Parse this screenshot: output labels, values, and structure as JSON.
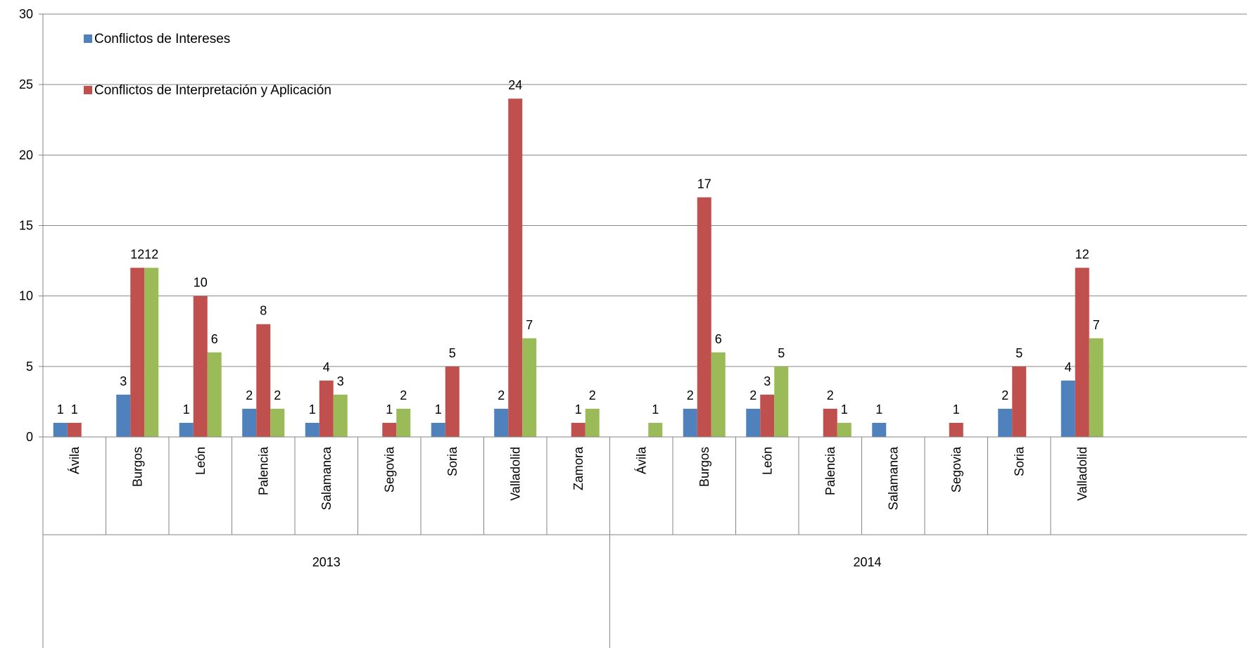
{
  "chart_data": {
    "type": "bar",
    "ylim": [
      0,
      30
    ],
    "yticks": [
      0,
      5,
      10,
      15,
      20,
      25,
      30
    ],
    "grid": true,
    "legend_position": "top-left",
    "groups": [
      {
        "label": "2013",
        "categories": [
          "Ávila",
          "Burgos",
          "León",
          "Palencia",
          "Salamanca",
          "Segovia",
          "Soria",
          "Valladolid",
          "Zamora"
        ]
      },
      {
        "label": "2014",
        "categories": [
          "Ávila",
          "Burgos",
          "León",
          "Palencia",
          "Salamanca",
          "Segovia",
          "Soria",
          "Valladolid"
        ]
      }
    ],
    "series": [
      {
        "name": "Conflictos de Intereses",
        "color": "#4F81BD",
        "values": [
          1,
          3,
          1,
          2,
          1,
          null,
          1,
          2,
          null,
          null,
          2,
          2,
          null,
          1,
          null,
          2,
          4
        ]
      },
      {
        "name": "Conflictos de Interpretación y Aplicación",
        "color": "#C0504D",
        "values": [
          1,
          12,
          10,
          8,
          4,
          1,
          5,
          24,
          1,
          null,
          17,
          3,
          2,
          null,
          1,
          5,
          12
        ]
      },
      {
        "name": "",
        "color": "#9BBB59",
        "values": [
          null,
          12,
          6,
          2,
          3,
          2,
          null,
          7,
          2,
          1,
          6,
          5,
          1,
          null,
          null,
          null,
          7
        ]
      }
    ]
  }
}
